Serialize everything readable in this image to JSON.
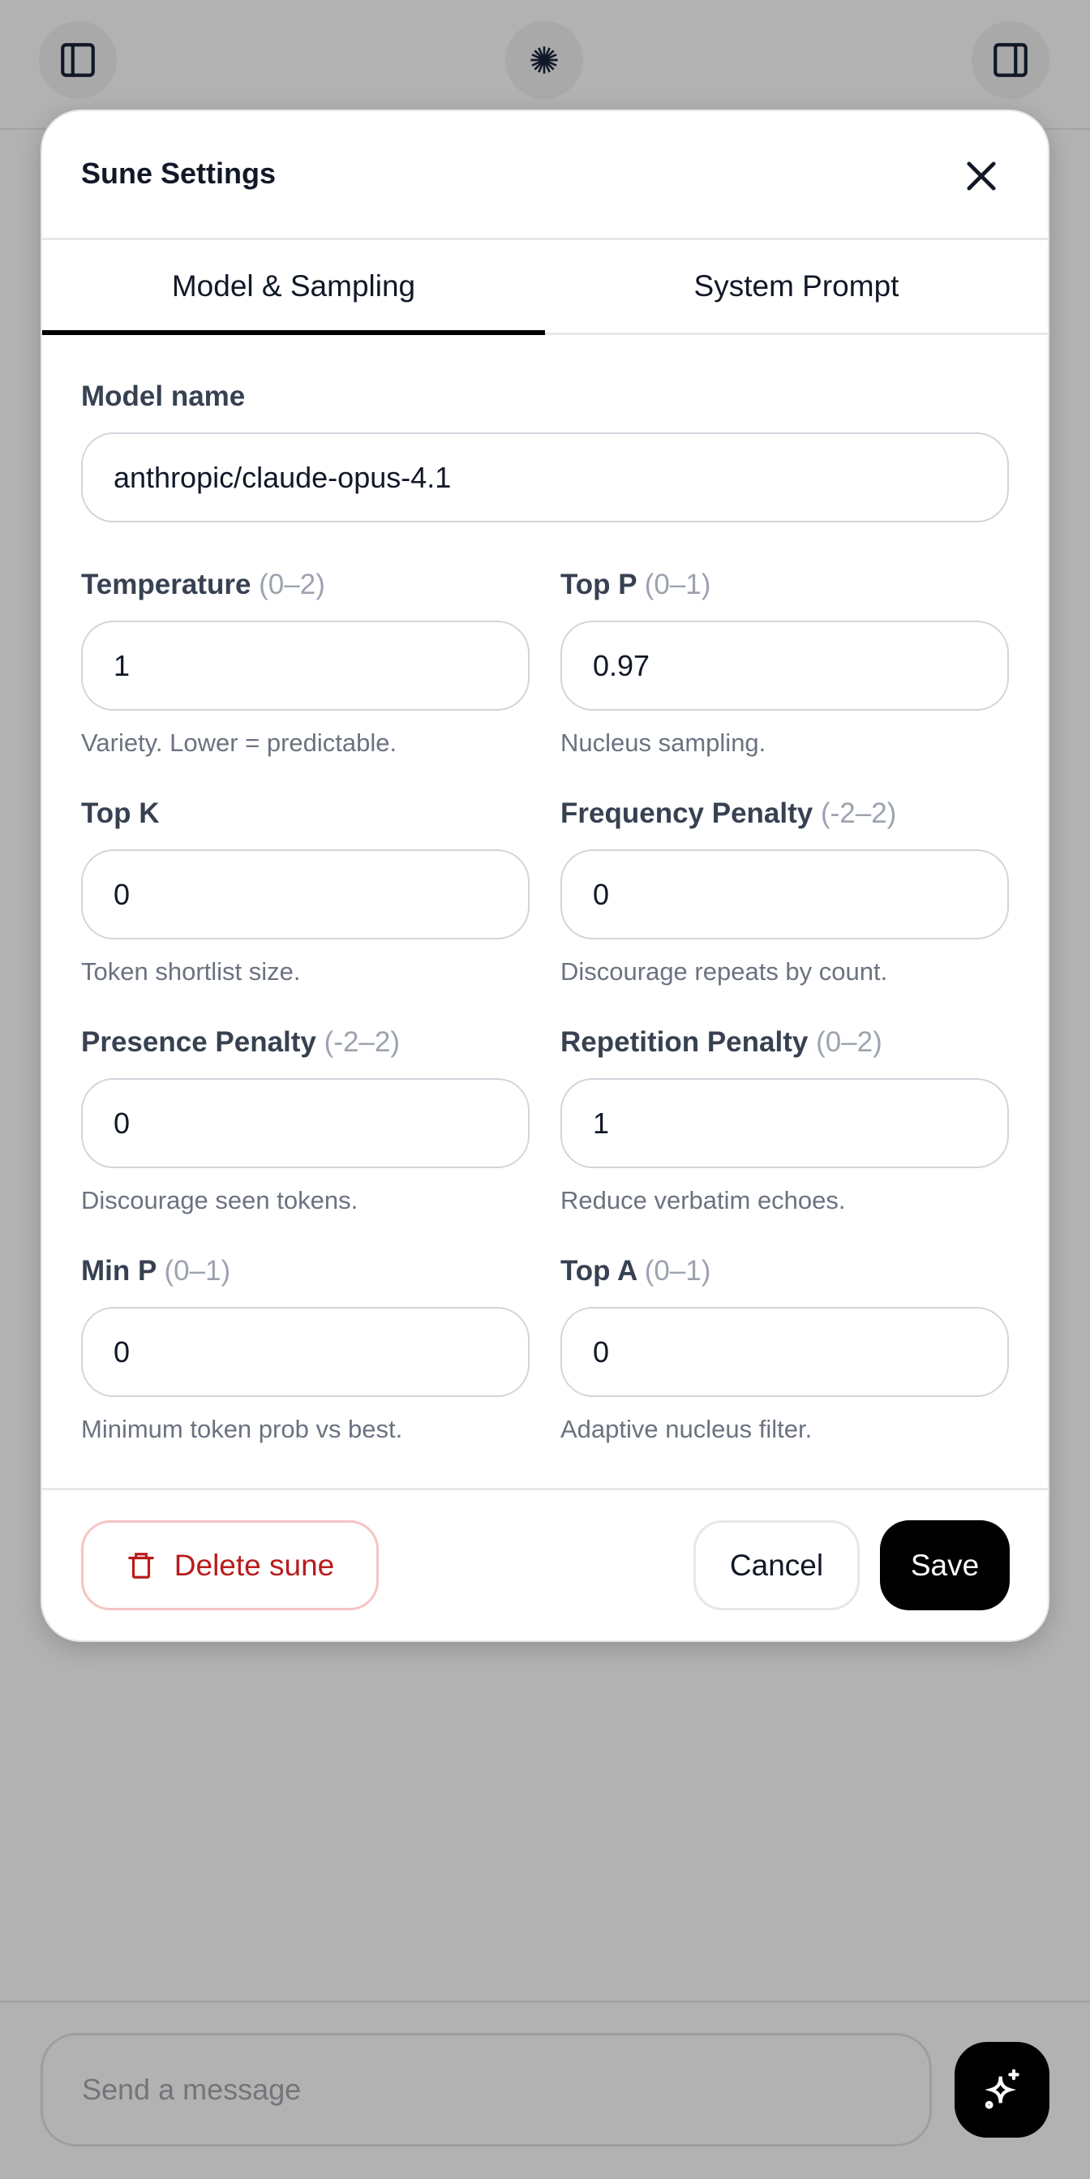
{
  "modal": {
    "title": "Sune Settings",
    "tabs": [
      {
        "label": "Model & Sampling",
        "active": true
      },
      {
        "label": "System Prompt",
        "active": false
      }
    ],
    "model_name": {
      "label": "Model name",
      "value": "anthropic/claude-opus-4.1"
    },
    "fields": [
      {
        "label": "Temperature",
        "range": "(0–2)",
        "value": "1",
        "help": "Variety. Lower = predictable."
      },
      {
        "label": "Top P",
        "range": "(0–1)",
        "value": "0.97",
        "help": "Nucleus sampling."
      },
      {
        "label": "Top K",
        "range": "",
        "value": "0",
        "help": "Token shortlist size."
      },
      {
        "label": "Frequency Penalty",
        "range": "(-2–2)",
        "value": "0",
        "help": "Discourage repeats by count."
      },
      {
        "label": "Presence Penalty",
        "range": "(-2–2)",
        "value": "0",
        "help": "Discourage seen tokens."
      },
      {
        "label": "Repetition Penalty",
        "range": "(0–2)",
        "value": "1",
        "help": "Reduce verbatim echoes."
      },
      {
        "label": "Min P",
        "range": "(0–1)",
        "value": "0",
        "help": "Minimum token prob vs best."
      },
      {
        "label": "Top A",
        "range": "(0–1)",
        "value": "0",
        "help": "Adaptive nucleus filter."
      }
    ],
    "footer": {
      "delete_label": "Delete sune",
      "cancel_label": "Cancel",
      "save_label": "Save"
    }
  },
  "composer": {
    "placeholder": "Send a message"
  },
  "icons": {
    "left": "sidebar-left-icon",
    "center": "starburst-icon",
    "right": "sidebar-right-icon",
    "send": "sparkles-icon"
  },
  "colors": {
    "overlay": "#b2b2b2",
    "danger": "#b91c1c",
    "primary": "#000000"
  }
}
